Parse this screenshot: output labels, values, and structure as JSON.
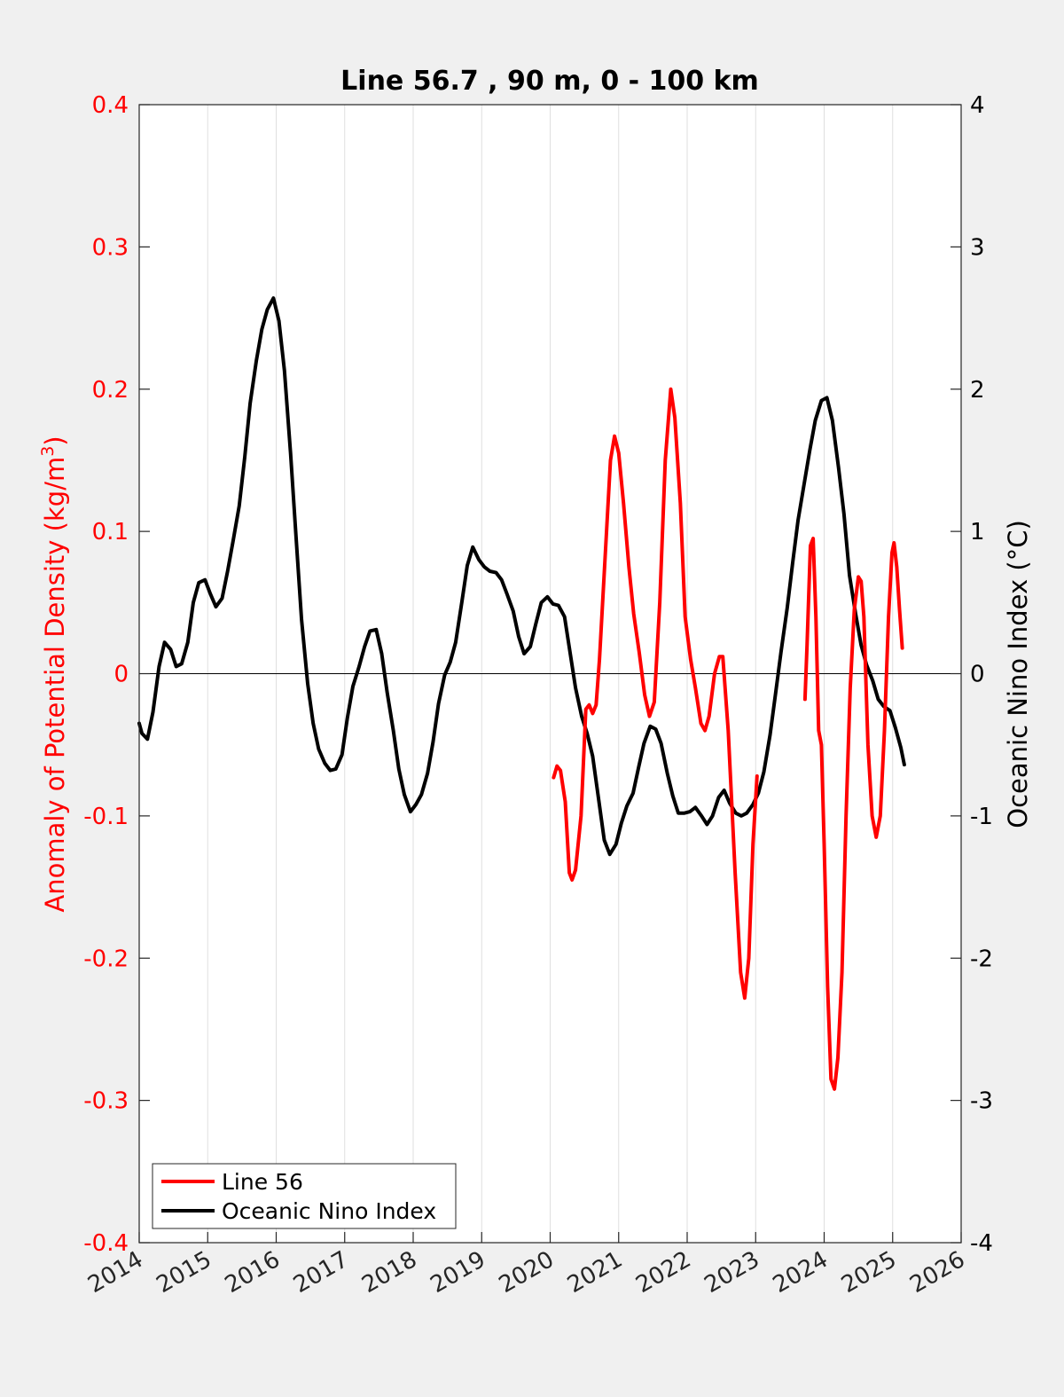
{
  "chart_data": {
    "type": "line",
    "title": "Line 56.7 , 90 m, 0 - 100 km",
    "xlabel": "",
    "xlim": [
      2014,
      2026
    ],
    "xticks": [
      "2014",
      "2015",
      "2016",
      "2017",
      "2018",
      "2019",
      "2020",
      "2021",
      "2022",
      "2023",
      "2024",
      "2025",
      "2026"
    ],
    "y_left": {
      "label": "Anomaly of Potential Density (kg/m",
      "label_sup": "3",
      "label_close": ")",
      "lim": [
        -0.4,
        0.4
      ],
      "ticks": [
        "-0.4",
        "-0.3",
        "-0.2",
        "-0.1",
        "0",
        "0.1",
        "0.2",
        "0.3",
        "0.4"
      ],
      "color": "#ff0000"
    },
    "y_right": {
      "label": "Oceanic Nino Index (°C)",
      "lim": [
        -4,
        4
      ],
      "ticks": [
        "-4",
        "-3",
        "-2",
        "-1",
        "0",
        "1",
        "2",
        "3",
        "4"
      ],
      "color": "#000000"
    },
    "grid": "vertical",
    "zero_line": true,
    "legend_position": "bottom-left",
    "series": [
      {
        "name": "Line 56",
        "axis": "left",
        "color": "#ff0000",
        "segments": [
          [
            [
              2020.05,
              -0.073
            ],
            [
              2020.1,
              -0.065
            ],
            [
              2020.15,
              -0.068
            ],
            [
              2020.22,
              -0.09
            ],
            [
              2020.28,
              -0.14
            ],
            [
              2020.32,
              -0.145
            ],
            [
              2020.37,
              -0.138
            ],
            [
              2020.45,
              -0.1
            ],
            [
              2020.52,
              -0.025
            ],
            [
              2020.57,
              -0.022
            ],
            [
              2020.62,
              -0.028
            ],
            [
              2020.67,
              -0.022
            ],
            [
              2020.72,
              0.01
            ],
            [
              2020.8,
              0.08
            ],
            [
              2020.88,
              0.15
            ],
            [
              2020.94,
              0.167
            ],
            [
              2021.0,
              0.155
            ],
            [
              2021.07,
              0.12
            ],
            [
              2021.15,
              0.075
            ],
            [
              2021.22,
              0.042
            ],
            [
              2021.3,
              0.015
            ],
            [
              2021.38,
              -0.015
            ],
            [
              2021.45,
              -0.03
            ],
            [
              2021.52,
              -0.02
            ],
            [
              2021.6,
              0.05
            ],
            [
              2021.68,
              0.15
            ],
            [
              2021.76,
              0.2
            ],
            [
              2021.82,
              0.18
            ],
            [
              2021.9,
              0.12
            ],
            [
              2021.97,
              0.04
            ],
            [
              2022.05,
              0.01
            ],
            [
              2022.12,
              -0.01
            ],
            [
              2022.2,
              -0.035
            ],
            [
              2022.26,
              -0.04
            ],
            [
              2022.32,
              -0.03
            ],
            [
              2022.4,
              0.0
            ],
            [
              2022.47,
              0.012
            ],
            [
              2022.52,
              0.012
            ],
            [
              2022.6,
              -0.04
            ],
            [
              2022.7,
              -0.14
            ],
            [
              2022.78,
              -0.21
            ],
            [
              2022.84,
              -0.228
            ],
            [
              2022.9,
              -0.2
            ],
            [
              2022.96,
              -0.12
            ],
            [
              2023.02,
              -0.072
            ]
          ],
          [
            [
              2023.72,
              -0.018
            ],
            [
              2023.75,
              0.02
            ],
            [
              2023.8,
              0.09
            ],
            [
              2023.84,
              0.095
            ],
            [
              2023.88,
              0.04
            ],
            [
              2023.92,
              -0.04
            ],
            [
              2023.96,
              -0.05
            ],
            [
              2024.0,
              -0.12
            ],
            [
              2024.05,
              -0.22
            ],
            [
              2024.1,
              -0.285
            ],
            [
              2024.15,
              -0.292
            ],
            [
              2024.2,
              -0.27
            ],
            [
              2024.26,
              -0.21
            ],
            [
              2024.32,
              -0.1
            ],
            [
              2024.38,
              -0.01
            ],
            [
              2024.44,
              0.045
            ],
            [
              2024.5,
              0.068
            ],
            [
              2024.54,
              0.065
            ],
            [
              2024.58,
              0.04
            ],
            [
              2024.64,
              -0.05
            ],
            [
              2024.7,
              -0.1
            ],
            [
              2024.76,
              -0.115
            ],
            [
              2024.82,
              -0.1
            ],
            [
              2024.88,
              -0.04
            ],
            [
              2024.94,
              0.04
            ],
            [
              2024.99,
              0.085
            ],
            [
              2025.02,
              0.092
            ],
            [
              2025.06,
              0.075
            ],
            [
              2025.1,
              0.045
            ],
            [
              2025.14,
              0.018
            ]
          ]
        ]
      },
      {
        "name": "Oceanic Nino Index",
        "axis": "right",
        "color": "#000000",
        "segments": [
          [
            [
              2014.0,
              -0.35
            ],
            [
              2014.04,
              -0.42
            ],
            [
              2014.12,
              -0.46
            ],
            [
              2014.2,
              -0.27
            ],
            [
              2014.29,
              0.05
            ],
            [
              2014.37,
              0.22
            ],
            [
              2014.46,
              0.17
            ],
            [
              2014.54,
              0.05
            ],
            [
              2014.62,
              0.07
            ],
            [
              2014.71,
              0.22
            ],
            [
              2014.79,
              0.5
            ],
            [
              2014.87,
              0.64
            ],
            [
              2014.96,
              0.66
            ],
            [
              2015.04,
              0.56
            ],
            [
              2015.12,
              0.47
            ],
            [
              2015.21,
              0.53
            ],
            [
              2015.29,
              0.72
            ],
            [
              2015.37,
              0.93
            ],
            [
              2015.46,
              1.18
            ],
            [
              2015.54,
              1.52
            ],
            [
              2015.62,
              1.9
            ],
            [
              2015.71,
              2.2
            ],
            [
              2015.79,
              2.42
            ],
            [
              2015.87,
              2.56
            ],
            [
              2015.96,
              2.64
            ],
            [
              2016.04,
              2.48
            ],
            [
              2016.12,
              2.13
            ],
            [
              2016.21,
              1.55
            ],
            [
              2016.29,
              0.96
            ],
            [
              2016.37,
              0.38
            ],
            [
              2016.46,
              -0.07
            ],
            [
              2016.54,
              -0.35
            ],
            [
              2016.62,
              -0.53
            ],
            [
              2016.71,
              -0.63
            ],
            [
              2016.79,
              -0.68
            ],
            [
              2016.87,
              -0.67
            ],
            [
              2016.96,
              -0.57
            ],
            [
              2017.04,
              -0.31
            ],
            [
              2017.12,
              -0.09
            ],
            [
              2017.21,
              0.05
            ],
            [
              2017.29,
              0.19
            ],
            [
              2017.37,
              0.3
            ],
            [
              2017.46,
              0.31
            ],
            [
              2017.54,
              0.14
            ],
            [
              2017.62,
              -0.13
            ],
            [
              2017.71,
              -0.4
            ],
            [
              2017.79,
              -0.67
            ],
            [
              2017.87,
              -0.85
            ],
            [
              2017.96,
              -0.97
            ],
            [
              2018.04,
              -0.92
            ],
            [
              2018.12,
              -0.85
            ],
            [
              2018.21,
              -0.7
            ],
            [
              2018.29,
              -0.48
            ],
            [
              2018.37,
              -0.21
            ],
            [
              2018.46,
              -0.01
            ],
            [
              2018.54,
              0.08
            ],
            [
              2018.62,
              0.22
            ],
            [
              2018.71,
              0.5
            ],
            [
              2018.79,
              0.76
            ],
            [
              2018.87,
              0.89
            ],
            [
              2018.96,
              0.8
            ],
            [
              2019.04,
              0.75
            ],
            [
              2019.12,
              0.72
            ],
            [
              2019.21,
              0.71
            ],
            [
              2019.29,
              0.66
            ],
            [
              2019.37,
              0.56
            ],
            [
              2019.46,
              0.44
            ],
            [
              2019.54,
              0.26
            ],
            [
              2019.62,
              0.14
            ],
            [
              2019.71,
              0.19
            ],
            [
              2019.79,
              0.35
            ],
            [
              2019.87,
              0.5
            ],
            [
              2019.96,
              0.54
            ],
            [
              2020.04,
              0.49
            ],
            [
              2020.12,
              0.48
            ],
            [
              2020.21,
              0.4
            ],
            [
              2020.29,
              0.15
            ],
            [
              2020.37,
              -0.1
            ],
            [
              2020.46,
              -0.3
            ],
            [
              2020.54,
              -0.42
            ],
            [
              2020.62,
              -0.58
            ],
            [
              2020.71,
              -0.89
            ],
            [
              2020.79,
              -1.17
            ],
            [
              2020.87,
              -1.27
            ],
            [
              2020.96,
              -1.2
            ],
            [
              2021.04,
              -1.05
            ],
            [
              2021.12,
              -0.93
            ],
            [
              2021.21,
              -0.84
            ],
            [
              2021.29,
              -0.66
            ],
            [
              2021.37,
              -0.49
            ],
            [
              2021.46,
              -0.37
            ],
            [
              2021.54,
              -0.39
            ],
            [
              2021.62,
              -0.49
            ],
            [
              2021.71,
              -0.7
            ],
            [
              2021.79,
              -0.86
            ],
            [
              2021.87,
              -0.98
            ],
            [
              2021.96,
              -0.98
            ],
            [
              2022.04,
              -0.97
            ],
            [
              2022.12,
              -0.94
            ],
            [
              2022.21,
              -1.0
            ],
            [
              2022.29,
              -1.06
            ],
            [
              2022.37,
              -1.0
            ],
            [
              2022.46,
              -0.87
            ],
            [
              2022.54,
              -0.82
            ],
            [
              2022.62,
              -0.91
            ],
            [
              2022.71,
              -0.98
            ],
            [
              2022.79,
              -1.0
            ],
            [
              2022.87,
              -0.98
            ],
            [
              2022.96,
              -0.92
            ],
            [
              2023.04,
              -0.84
            ],
            [
              2023.12,
              -0.69
            ],
            [
              2023.21,
              -0.43
            ],
            [
              2023.29,
              -0.14
            ],
            [
              2023.37,
              0.15
            ],
            [
              2023.46,
              0.46
            ],
            [
              2023.54,
              0.78
            ],
            [
              2023.62,
              1.08
            ],
            [
              2023.71,
              1.34
            ],
            [
              2023.79,
              1.57
            ],
            [
              2023.87,
              1.78
            ],
            [
              2023.96,
              1.92
            ],
            [
              2024.04,
              1.94
            ],
            [
              2024.12,
              1.78
            ],
            [
              2024.21,
              1.45
            ],
            [
              2024.29,
              1.12
            ],
            [
              2024.37,
              0.69
            ],
            [
              2024.46,
              0.42
            ],
            [
              2024.54,
              0.2
            ],
            [
              2024.62,
              0.06
            ],
            [
              2024.71,
              -0.05
            ],
            [
              2024.79,
              -0.18
            ],
            [
              2024.87,
              -0.23
            ],
            [
              2024.96,
              -0.26
            ],
            [
              2025.04,
              -0.38
            ],
            [
              2025.12,
              -0.52
            ],
            [
              2025.17,
              -0.64
            ]
          ]
        ]
      }
    ]
  }
}
